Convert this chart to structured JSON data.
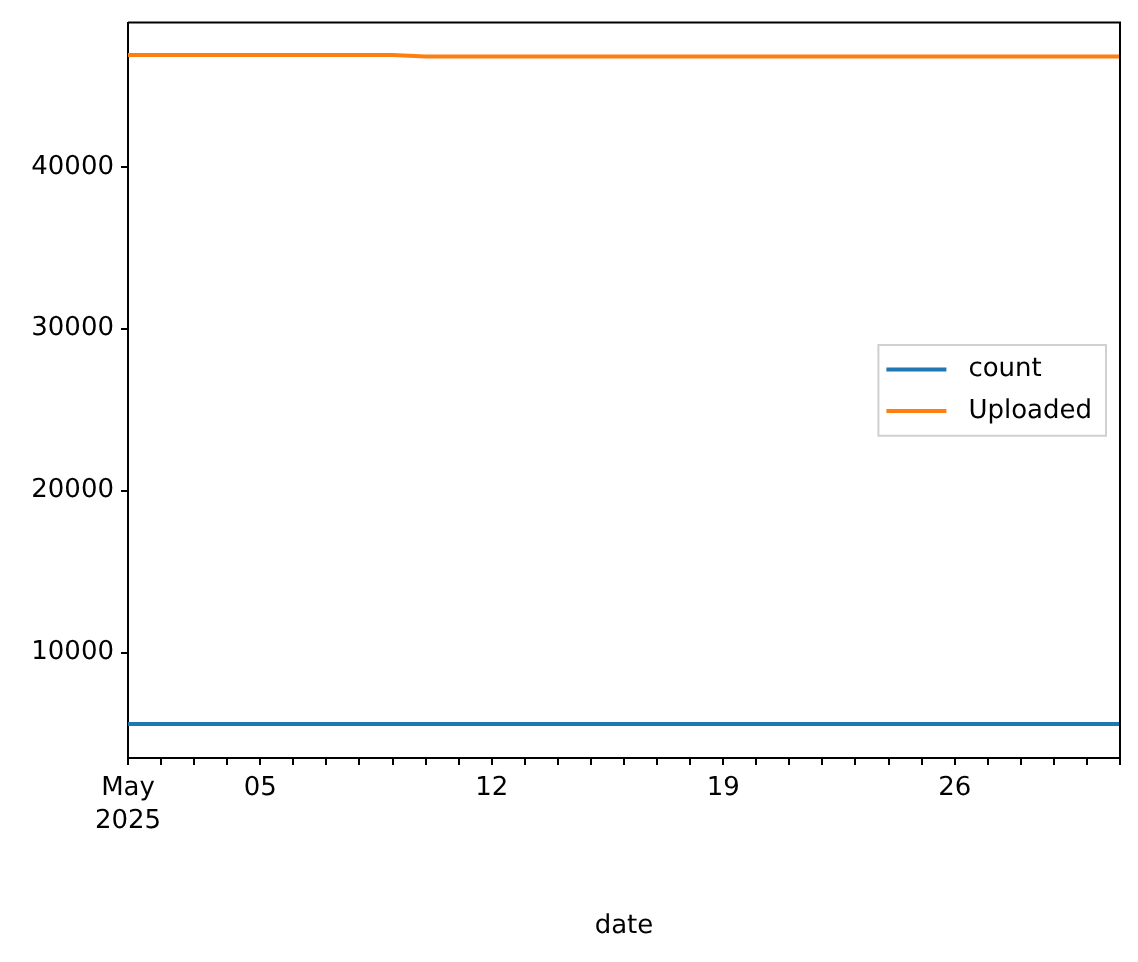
{
  "chart_data": {
    "type": "line",
    "xlabel": "date",
    "x": [
      "2025-05-01",
      "2025-05-02",
      "2025-05-03",
      "2025-05-04",
      "2025-05-05",
      "2025-05-06",
      "2025-05-07",
      "2025-05-08",
      "2025-05-09",
      "2025-05-10",
      "2025-05-11",
      "2025-05-12",
      "2025-05-13",
      "2025-05-14",
      "2025-05-15",
      "2025-05-16",
      "2025-05-17",
      "2025-05-18",
      "2025-05-19",
      "2025-05-20",
      "2025-05-21",
      "2025-05-22",
      "2025-05-23",
      "2025-05-24",
      "2025-05-25",
      "2025-05-26",
      "2025-05-27",
      "2025-05-28",
      "2025-05-29",
      "2025-05-30",
      "2025-05-31"
    ],
    "series": [
      {
        "name": "count",
        "color": "#1f77b4",
        "values": [
          5600,
          5600,
          5600,
          5600,
          5600,
          5600,
          5600,
          5600,
          5600,
          5600,
          5600,
          5600,
          5600,
          5600,
          5600,
          5600,
          5600,
          5600,
          5600,
          5600,
          5600,
          5600,
          5600,
          5600,
          5600,
          5600,
          5600,
          5600,
          5600,
          5600,
          5600
        ]
      },
      {
        "name": "Uploaded",
        "color": "#ff7f0e",
        "values": [
          46900,
          46900,
          46900,
          46900,
          46900,
          46900,
          46900,
          46900,
          46900,
          46800,
          46800,
          46800,
          46800,
          46800,
          46800,
          46800,
          46800,
          46800,
          46800,
          46800,
          46800,
          46800,
          46800,
          46800,
          46800,
          46800,
          46800,
          46800,
          46800,
          46800,
          46800
        ]
      }
    ],
    "xlim": [
      "2025-05-01",
      "2025-05-31"
    ],
    "xticks": [
      {
        "value": "2025-05-01",
        "label": "May\n2025"
      },
      {
        "value": "2025-05-02",
        "label": null
      },
      {
        "value": "2025-05-03",
        "label": null
      },
      {
        "value": "2025-05-04",
        "label": null
      },
      {
        "value": "2025-05-05",
        "label": "05"
      },
      {
        "value": "2025-05-06",
        "label": null
      },
      {
        "value": "2025-05-07",
        "label": null
      },
      {
        "value": "2025-05-08",
        "label": null
      },
      {
        "value": "2025-05-09",
        "label": null
      },
      {
        "value": "2025-05-10",
        "label": null
      },
      {
        "value": "2025-05-11",
        "label": null
      },
      {
        "value": "2025-05-12",
        "label": "12"
      },
      {
        "value": "2025-05-13",
        "label": null
      },
      {
        "value": "2025-05-14",
        "label": null
      },
      {
        "value": "2025-05-15",
        "label": null
      },
      {
        "value": "2025-05-16",
        "label": null
      },
      {
        "value": "2025-05-17",
        "label": null
      },
      {
        "value": "2025-05-18",
        "label": null
      },
      {
        "value": "2025-05-19",
        "label": "19"
      },
      {
        "value": "2025-05-20",
        "label": null
      },
      {
        "value": "2025-05-21",
        "label": null
      },
      {
        "value": "2025-05-22",
        "label": null
      },
      {
        "value": "2025-05-23",
        "label": null
      },
      {
        "value": "2025-05-24",
        "label": null
      },
      {
        "value": "2025-05-25",
        "label": null
      },
      {
        "value": "2025-05-26",
        "label": "26"
      },
      {
        "value": "2025-05-27",
        "label": null
      },
      {
        "value": "2025-05-28",
        "label": null
      },
      {
        "value": "2025-05-29",
        "label": null
      },
      {
        "value": "2025-05-30",
        "label": null
      },
      {
        "value": "2025-05-31",
        "label": null
      }
    ],
    "ylim": [
      3500,
      48900
    ],
    "yticks": [
      10000,
      20000,
      30000,
      40000
    ],
    "legend": "right"
  }
}
